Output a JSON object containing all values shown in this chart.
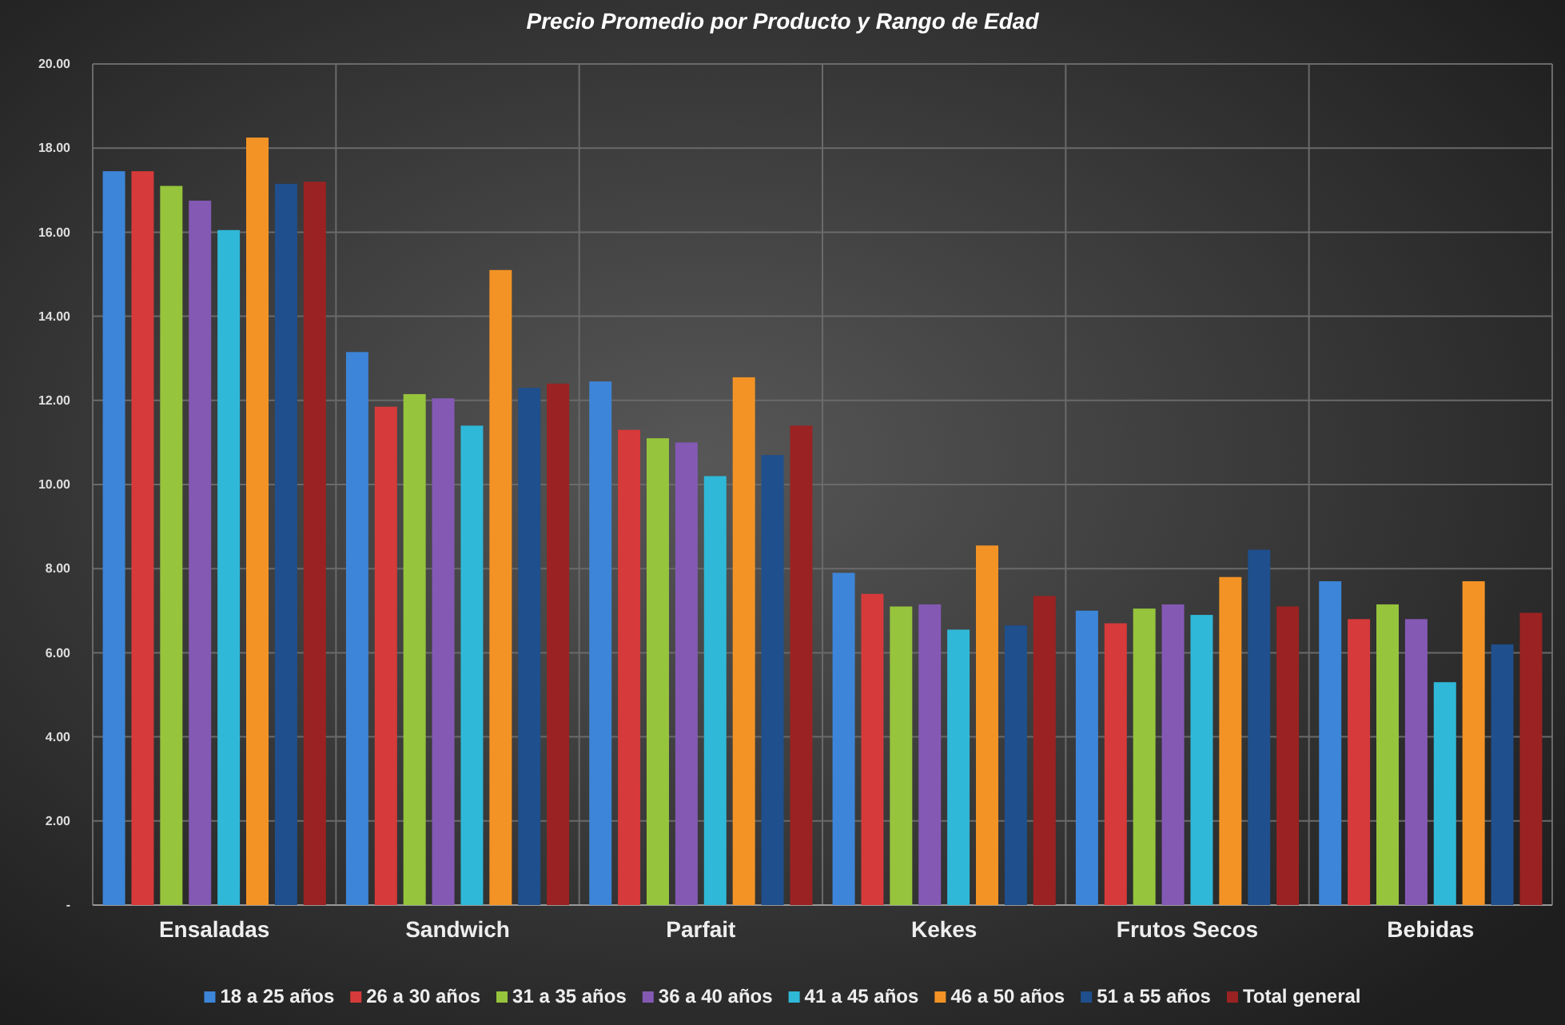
{
  "chart_data": {
    "type": "bar",
    "title": "Precio Promedio por Producto y Rango de Edad",
    "categories": [
      "Ensaladas",
      "Sandwich",
      "Parfait",
      "Kekes",
      "Frutos Secos",
      "Bebidas"
    ],
    "series": [
      {
        "name": "18 a 25 años",
        "color": "#3d85d8",
        "values": [
          17.45,
          13.15,
          12.45,
          7.9,
          7.0,
          7.7
        ]
      },
      {
        "name": "26 a 30 años",
        "color": "#d63a3a",
        "values": [
          17.45,
          11.85,
          11.3,
          7.4,
          6.7,
          6.8
        ]
      },
      {
        "name": "31 a 35 años",
        "color": "#96c43c",
        "values": [
          17.1,
          12.15,
          11.1,
          7.1,
          7.05,
          7.15
        ]
      },
      {
        "name": "36 a 40 años",
        "color": "#8459b4",
        "values": [
          16.75,
          12.05,
          11.0,
          7.15,
          7.15,
          6.8
        ]
      },
      {
        "name": "41 a 45 años",
        "color": "#2fb8d8",
        "values": [
          16.05,
          11.4,
          10.2,
          6.55,
          6.9,
          5.3
        ]
      },
      {
        "name": "46 a 50 años",
        "color": "#f39325",
        "values": [
          18.25,
          15.1,
          12.55,
          8.55,
          7.8,
          7.7
        ]
      },
      {
        "name": "51 a 55 años",
        "color": "#1f4f8c",
        "values": [
          17.15,
          12.3,
          10.7,
          6.65,
          8.45,
          6.2
        ]
      },
      {
        "name": "Total general",
        "color": "#9b2222",
        "values": [
          17.2,
          12.4,
          11.4,
          7.35,
          7.1,
          6.95
        ]
      }
    ],
    "ylim": [
      0,
      20
    ],
    "yticks": [
      {
        "value": 0,
        "label": "-"
      },
      {
        "value": 2,
        "label": "2.00"
      },
      {
        "value": 4,
        "label": "4.00"
      },
      {
        "value": 6,
        "label": "6.00"
      },
      {
        "value": 8,
        "label": "8.00"
      },
      {
        "value": 10,
        "label": "10.00"
      },
      {
        "value": 12,
        "label": "12.00"
      },
      {
        "value": 14,
        "label": "14.00"
      },
      {
        "value": 16,
        "label": "16.00"
      },
      {
        "value": 18,
        "label": "18.00"
      },
      {
        "value": 20,
        "label": "20.00"
      }
    ],
    "grid": true,
    "legend": "bottom"
  }
}
